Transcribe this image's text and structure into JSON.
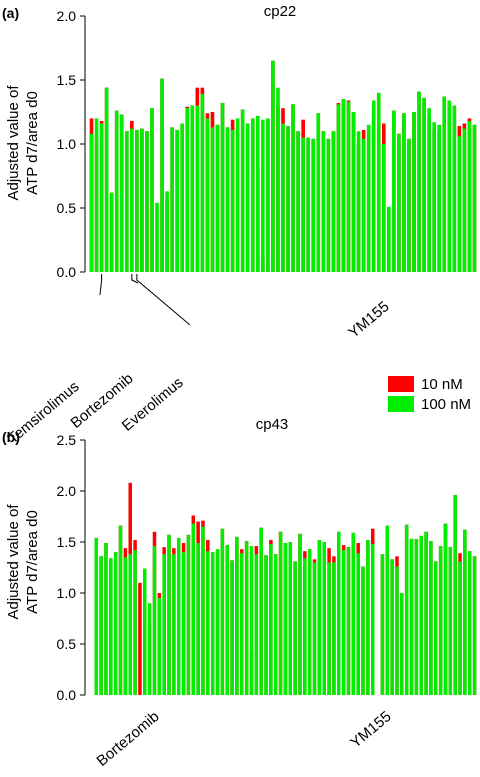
{
  "legend": {
    "items": [
      {
        "label": "10 nM",
        "color": "#ff0000"
      },
      {
        "label": "100 nM",
        "color": "#00ee00"
      }
    ]
  },
  "chart_data": [
    {
      "type": "bar",
      "panel": "(a)",
      "title": "cp22",
      "ylabel_line1": "Adjusted value of",
      "ylabel_line2": "ATP d7/area d0",
      "xlabel": "",
      "ylim": [
        0,
        2.0
      ],
      "yticks": [
        "0.0",
        "0.5",
        "1.0",
        "1.5",
        "2.0"
      ],
      "annotations": [
        {
          "label": "Temsirolimus",
          "bar": 2
        },
        {
          "label": "Bortezomib",
          "bar": 8
        },
        {
          "label": "Everolimus",
          "bar": 9
        },
        {
          "label": "YM155",
          "bar": 59
        }
      ],
      "series": [
        {
          "name": "10 nM",
          "color": "#ff0000",
          "values": [
            1.2,
            1.05,
            1.18,
            1.44,
            0.62,
            1.26,
            1.23,
            1.1,
            1.18,
            1.11,
            1.12,
            1.1,
            1.28,
            0.0,
            1.51,
            0.55,
            1.13,
            1.11,
            1.16,
            1.29,
            1.3,
            1.44,
            1.44,
            1.24,
            1.25,
            1.15,
            1.32,
            1.13,
            1.19,
            1.11,
            1.27,
            1.16,
            1.2,
            0.8,
            0.12,
            1.19,
            1.65,
            1.3,
            1.28,
            1.14,
            1.31,
            1.1,
            1.19,
            1.05,
            1.04,
            1.24,
            1.1,
            1.04,
            1.1,
            1.32,
            1.35,
            1.34,
            1.25,
            1.0,
            1.11,
            1.04,
            1.2,
            1.38,
            1.16,
            0.0,
            1.26,
            1.08,
            1.24,
            1.04,
            1.25,
            1.41,
            1.36,
            1.2,
            1.1,
            1.1,
            1.37,
            1.34,
            1.3,
            1.14,
            1.16,
            1.2,
            1.15
          ]
        },
        {
          "name": "100 nM",
          "color": "#00ee00",
          "values": [
            1.08,
            1.2,
            1.16,
            1.44,
            0.62,
            1.26,
            1.23,
            1.1,
            1.12,
            1.11,
            1.12,
            1.1,
            1.28,
            0.54,
            1.51,
            0.63,
            1.13,
            1.11,
            1.16,
            1.28,
            1.3,
            1.3,
            1.39,
            1.2,
            1.13,
            1.15,
            1.32,
            1.13,
            1.11,
            1.2,
            1.27,
            1.16,
            1.2,
            1.22,
            1.19,
            1.2,
            1.65,
            1.44,
            1.16,
            1.14,
            1.31,
            1.1,
            1.05,
            1.05,
            1.04,
            1.24,
            1.1,
            1.04,
            1.1,
            1.31,
            1.35,
            1.33,
            1.25,
            1.1,
            1.04,
            1.15,
            1.34,
            1.4,
            1.0,
            0.51,
            1.26,
            1.08,
            1.24,
            1.04,
            1.25,
            1.41,
            1.36,
            1.28,
            1.17,
            1.15,
            1.37,
            1.34,
            1.3,
            1.06,
            1.12,
            1.18,
            1.15
          ]
        }
      ]
    },
    {
      "type": "bar",
      "panel": "(b)",
      "title": "cp43",
      "ylabel_line1": "Adjusted value of",
      "ylabel_line2": "ATP d7/area d0",
      "xlabel": "",
      "ylim": [
        0,
        2.5
      ],
      "yticks": [
        "0.0",
        "0.5",
        "1.0",
        "1.5",
        "2.0",
        "2.5"
      ],
      "annotations": [
        {
          "label": "Bortezomib",
          "bar": 13
        },
        {
          "label": "YM155",
          "bar": 59
        }
      ],
      "series": [
        {
          "name": "10 nM",
          "color": "#ff0000",
          "values": [
            0.0,
            1.54,
            1.36,
            1.49,
            1.34,
            1.4,
            1.66,
            1.44,
            2.08,
            1.52,
            1.1,
            1.24,
            0.7,
            1.6,
            1.0,
            1.45,
            1.57,
            1.44,
            1.54,
            1.49,
            1.57,
            1.76,
            1.7,
            1.71,
            1.52,
            1.4,
            1.41,
            1.63,
            1.47,
            1.32,
            1.55,
            1.43,
            1.51,
            0.45,
            1.46,
            1.64,
            1.37,
            1.52,
            1.38,
            1.6,
            1.49,
            1.5,
            1.31,
            1.58,
            1.41,
            1.43,
            1.33,
            1.52,
            1.5,
            1.44,
            1.36,
            1.6,
            1.47,
            1.45,
            1.59,
            1.49,
            1.26,
            1.52,
            1.63,
            0.0,
            1.38,
            1.66,
            1.33,
            1.36,
            1.0,
            1.67,
            1.53,
            1.53,
            1.56,
            1.6,
            1.51,
            1.31,
            1.46,
            1.68,
            1.45,
            1.96,
            1.39,
            1.62,
            1.41,
            1.36
          ]
        },
        {
          "name": "100 nM",
          "color": "#00ee00",
          "values": [
            0.0,
            1.54,
            1.36,
            1.49,
            1.34,
            1.4,
            1.66,
            1.35,
            1.38,
            1.42,
            0.0,
            1.24,
            0.9,
            1.46,
            0.95,
            1.38,
            1.57,
            1.38,
            1.54,
            1.4,
            1.57,
            1.68,
            1.49,
            1.65,
            1.41,
            1.4,
            1.43,
            1.63,
            1.47,
            1.32,
            1.55,
            1.39,
            1.51,
            1.46,
            1.38,
            1.64,
            1.37,
            1.48,
            1.38,
            1.6,
            1.49,
            1.5,
            1.31,
            1.58,
            1.34,
            1.43,
            1.3,
            1.52,
            1.5,
            1.3,
            1.3,
            1.6,
            1.42,
            1.45,
            1.59,
            1.39,
            1.26,
            1.52,
            1.48,
            0.0,
            1.38,
            1.66,
            1.33,
            1.26,
            1.0,
            1.67,
            1.53,
            1.53,
            1.56,
            1.6,
            1.51,
            1.31,
            1.46,
            1.68,
            1.45,
            1.96,
            1.31,
            1.62,
            1.41,
            1.36
          ]
        }
      ]
    }
  ]
}
